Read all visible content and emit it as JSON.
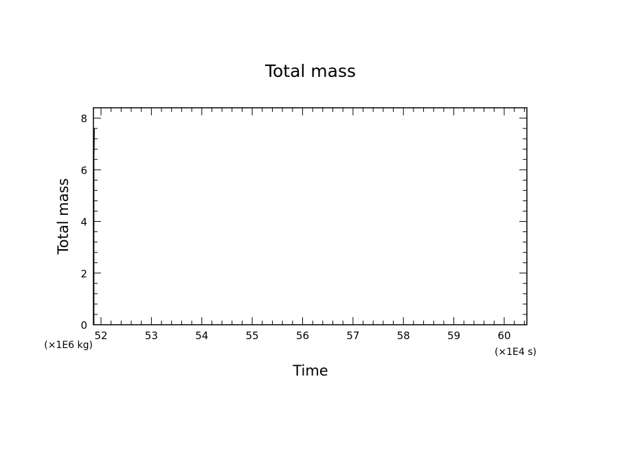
{
  "chart_data": {
    "type": "line",
    "title": "Total mass",
    "xlabel": "Time",
    "ylabel": "Total mass",
    "x_unit": "(×1E4 s)",
    "y_unit": "(×1E6 kg)",
    "xlim": [
      51.85,
      60.45
    ],
    "ylim": [
      0,
      8.4
    ],
    "x_major_ticks": [
      52,
      53,
      54,
      55,
      56,
      57,
      58,
      59,
      60
    ],
    "x_tick_labels": [
      "52",
      "53",
      "54",
      "55",
      "56",
      "57",
      "58",
      "59",
      "60"
    ],
    "y_major_ticks": [
      0,
      2,
      4,
      6,
      8
    ],
    "y_tick_labels": [
      "0",
      "2",
      "4",
      "6",
      "8"
    ],
    "grid": false,
    "series": [
      {
        "x": [
          51.86,
          51.86,
          51.87
        ],
        "y": [
          0,
          6.5,
          7.6
        ]
      }
    ],
    "line_color": "#000000"
  }
}
